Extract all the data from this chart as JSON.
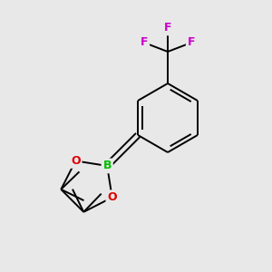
{
  "background_color": "#e8e8e8",
  "bond_color": "#000000",
  "boron_color": "#00bb00",
  "oxygen_color": "#dd0000",
  "fluorine_color": "#cc00cc",
  "figsize": [
    3.0,
    3.0
  ],
  "dpi": 100,
  "xlim": [
    0,
    300
  ],
  "ylim": [
    0,
    300
  ]
}
